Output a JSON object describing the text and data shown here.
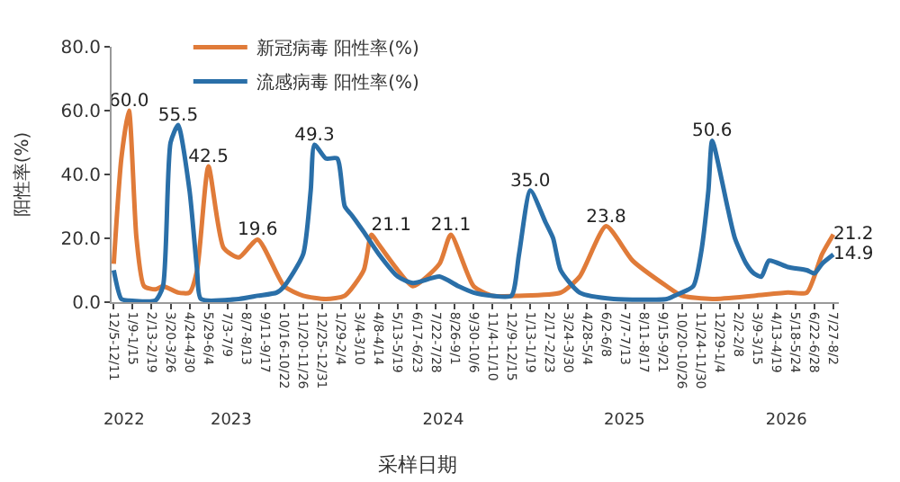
{
  "chart_data": {
    "type": "line",
    "xlabel": "采样日期",
    "ylabel": "阳性率(%)",
    "xlim": [
      "2022-12-01",
      "2026-08-06"
    ],
    "xticks": [
      {
        "value": "2022-12-05",
        "label": "12/5-12/11"
      },
      {
        "value": "2023-01-09",
        "label": "1/9-1/15"
      },
      {
        "value": "2023-02-13",
        "label": "2/13-2/19"
      },
      {
        "value": "2023-03-20",
        "label": "3/20-3/26"
      },
      {
        "value": "2023-04-24",
        "label": "4/24-4/30"
      },
      {
        "value": "2023-05-29",
        "label": "5/29-6/4"
      },
      {
        "value": "2023-07-03",
        "label": "7/3-7/9"
      },
      {
        "value": "2023-08-07",
        "label": "8/7-8/13"
      },
      {
        "value": "2023-09-11",
        "label": "9/11-9/17"
      },
      {
        "value": "2023-10-16",
        "label": "10/16-10/22"
      },
      {
        "value": "2023-11-20",
        "label": "11/20-11/26"
      },
      {
        "value": "2023-12-25",
        "label": "12/25-12/31"
      },
      {
        "value": "2024-01-29",
        "label": "1/29-2/4"
      },
      {
        "value": "2024-03-04",
        "label": "3/4-3/10"
      },
      {
        "value": "2024-04-08",
        "label": "4/8-4/14"
      },
      {
        "value": "2024-05-13",
        "label": "5/13-5/19"
      },
      {
        "value": "2024-06-17",
        "label": "6/17-6/23"
      },
      {
        "value": "2024-07-22",
        "label": "7/22-7/28"
      },
      {
        "value": "2024-08-26",
        "label": "8/26-9/1"
      },
      {
        "value": "2024-09-30",
        "label": "9/30-10/6"
      },
      {
        "value": "2024-11-04",
        "label": "11/4-11/10"
      },
      {
        "value": "2024-12-09",
        "label": "12/9-12/15"
      },
      {
        "value": "2025-01-13",
        "label": "1/13-1/19"
      },
      {
        "value": "2025-02-17",
        "label": "2/17-2/23"
      },
      {
        "value": "2025-03-24",
        "label": "3/24-3/30"
      },
      {
        "value": "2025-04-28",
        "label": "4/28-5/4"
      },
      {
        "value": "2025-06-02",
        "label": "6/2-6/8"
      },
      {
        "value": "2025-07-07",
        "label": "7/7-7/13"
      },
      {
        "value": "2025-08-11",
        "label": "8/11-8/17"
      },
      {
        "value": "2025-09-15",
        "label": "9/15-9/21"
      },
      {
        "value": "2025-10-20",
        "label": "10/20-10/26"
      },
      {
        "value": "2025-11-24",
        "label": "11/24-11/30"
      },
      {
        "value": "2025-12-29",
        "label": "12/29-1/4"
      },
      {
        "value": "2026-02-02",
        "label": "2/2-2/8"
      },
      {
        "value": "2026-03-09",
        "label": "3/9-3/15"
      },
      {
        "value": "2026-04-13",
        "label": "4/13-4/19"
      },
      {
        "value": "2026-05-18",
        "label": "5/18-5/24"
      },
      {
        "value": "2026-06-22",
        "label": "6/22-6/28"
      },
      {
        "value": "2026-07-27",
        "label": "7/27-8/2"
      }
    ],
    "x2lim": [
      "2022-12-01",
      "2026-08-06"
    ],
    "x2ticks": [
      {
        "value": "2022-12-24",
        "label": "2022"
      },
      {
        "value": "2023-07-10",
        "label": "2023"
      },
      {
        "value": "2024-08-05",
        "label": "2024"
      },
      {
        "value": "2025-07-06",
        "label": "2025"
      },
      {
        "value": "2026-05-01",
        "label": "2026"
      }
    ],
    "ylim": [
      0,
      80
    ],
    "yticks": [
      {
        "value": 0,
        "label": "0.0"
      },
      {
        "value": 20,
        "label": "20.0"
      },
      {
        "value": 40,
        "label": "40.0"
      },
      {
        "value": 60,
        "label": "60.0"
      },
      {
        "value": 80,
        "label": "80.0"
      }
    ],
    "legend": "top left",
    "series": [
      {
        "name": "新冠病毒 阳性率(%)",
        "color": "#e07b39",
        "x": [
          "2022-12-05",
          "2022-12-19",
          "2023-01-02",
          "2023-01-16",
          "2023-01-30",
          "2023-02-20",
          "2023-03-06",
          "2023-04-03",
          "2023-04-24",
          "2023-05-08",
          "2023-05-29",
          "2023-06-26",
          "2023-07-24",
          "2023-08-28",
          "2023-10-16",
          "2023-11-20",
          "2024-01-01",
          "2024-02-05",
          "2024-03-11",
          "2024-03-25",
          "2024-04-08",
          "2024-05-13",
          "2024-06-10",
          "2024-07-29",
          "2024-08-19",
          "2024-09-30",
          "2024-11-04",
          "2024-12-23",
          "2025-03-10",
          "2025-04-14",
          "2025-06-02",
          "2025-07-21",
          "2025-09-22",
          "2025-10-20",
          "2025-12-15",
          "2026-03-02",
          "2026-05-04",
          "2026-06-08",
          "2026-07-06",
          "2026-07-27"
        ],
        "values": [
          12,
          45,
          60.0,
          20,
          5,
          4,
          5,
          3,
          3,
          10,
          42.5,
          17,
          14,
          19.6,
          5,
          2,
          1,
          2,
          10,
          21.1,
          18,
          10,
          5,
          12,
          21.1,
          5,
          2,
          2,
          3,
          8,
          23.8,
          13,
          5,
          2,
          1,
          2,
          3,
          3,
          15,
          21.2
        ],
        "value_labels": [
          null,
          null,
          "60.0",
          null,
          null,
          null,
          null,
          null,
          null,
          null,
          "42.5",
          null,
          null,
          "19.6",
          null,
          null,
          null,
          null,
          null,
          "21.1",
          null,
          null,
          null,
          null,
          "21.1",
          null,
          null,
          null,
          null,
          null,
          "23.8",
          null,
          null,
          null,
          null,
          null,
          null,
          null,
          null,
          "21.2"
        ]
      },
      {
        "name": "流感病毒 阳性率(%)",
        "color": "#2a6fa8",
        "x": [
          "2022-12-05",
          "2022-12-19",
          "2023-01-02",
          "2023-02-20",
          "2023-03-06",
          "2023-03-20",
          "2023-04-03",
          "2023-04-24",
          "2023-05-08",
          "2023-05-15",
          "2023-07-24",
          "2023-08-28",
          "2023-10-02",
          "2023-10-16",
          "2023-11-20",
          "2023-12-04",
          "2023-12-11",
          "2024-01-01",
          "2024-01-22",
          "2024-02-05",
          "2024-02-19",
          "2024-03-11",
          "2024-04-08",
          "2024-05-13",
          "2024-06-10",
          "2024-07-29",
          "2024-09-02",
          "2024-09-30",
          "2024-11-04",
          "2024-12-09",
          "2024-12-23",
          "2025-01-13",
          "2025-02-10",
          "2025-02-24",
          "2025-03-10",
          "2025-04-14",
          "2025-06-16",
          "2025-09-22",
          "2025-10-06",
          "2025-11-10",
          "2025-11-24",
          "2025-12-08",
          "2025-12-15",
          "2026-01-12",
          "2026-01-26",
          "2026-02-16",
          "2026-03-02",
          "2026-03-16",
          "2026-03-30",
          "2026-05-04",
          "2026-06-08",
          "2026-06-22",
          "2026-07-06",
          "2026-07-27"
        ],
        "values": [
          10,
          1,
          0.5,
          0.5,
          5,
          50,
          55.5,
          35,
          10,
          1,
          1,
          2,
          3,
          5,
          15,
          35,
          49.3,
          45,
          45,
          30,
          27,
          22,
          15,
          8,
          6,
          8,
          5,
          3,
          2,
          2,
          15,
          35.0,
          25,
          20,
          10,
          3,
          1,
          1,
          2,
          5,
          15,
          35,
          50.6,
          30,
          20,
          12,
          9,
          8,
          13,
          11,
          10,
          9,
          12,
          14.9
        ],
        "value_labels": [
          null,
          null,
          null,
          null,
          null,
          null,
          "55.5",
          null,
          null,
          null,
          null,
          null,
          null,
          null,
          null,
          null,
          "49.3",
          null,
          null,
          null,
          null,
          null,
          null,
          null,
          null,
          null,
          null,
          null,
          null,
          null,
          null,
          "35.0",
          null,
          null,
          null,
          null,
          null,
          null,
          null,
          null,
          null,
          null,
          "50.6",
          null,
          null,
          null,
          null,
          null,
          null,
          null,
          null,
          null,
          null,
          "14.9"
        ]
      }
    ]
  }
}
